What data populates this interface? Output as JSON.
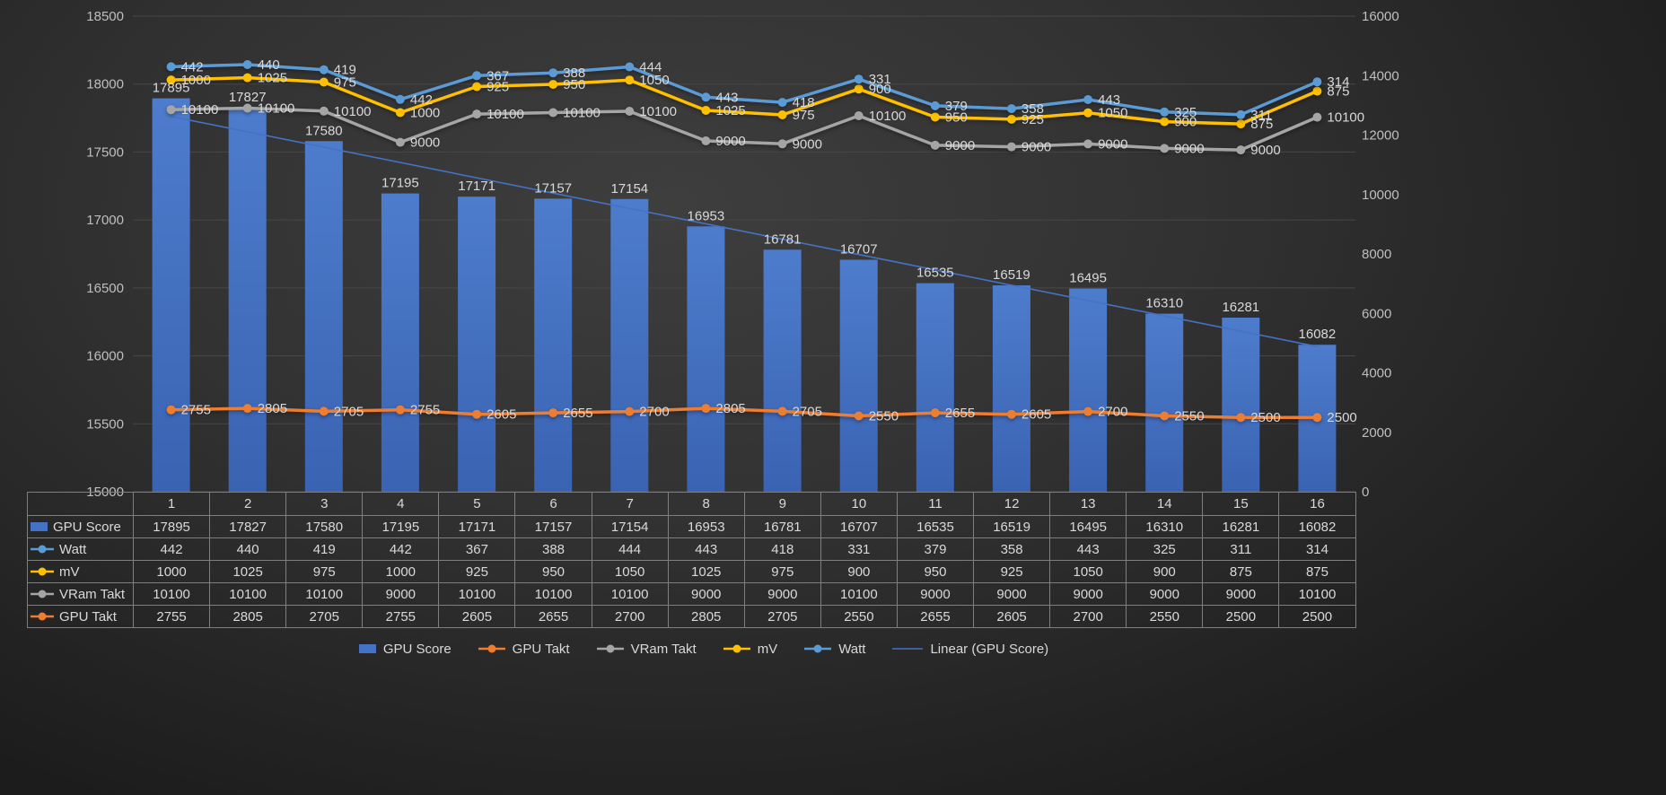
{
  "chart_data": {
    "type": "combo (bar + stacked lines + linear trendline)",
    "title": "",
    "categories": [
      "1",
      "2",
      "3",
      "4",
      "5",
      "6",
      "7",
      "8",
      "9",
      "10",
      "11",
      "12",
      "13",
      "14",
      "15",
      "16"
    ],
    "bar_series": {
      "name": "GPU Score",
      "axis": "left",
      "color": "#4472C4",
      "values": [
        17895,
        17827,
        17580,
        17195,
        17171,
        17157,
        17154,
        16953,
        16781,
        16707,
        16535,
        16519,
        16495,
        16310,
        16281,
        16082
      ]
    },
    "line_series": [
      {
        "name": "GPU Takt",
        "color": "#ED7D31",
        "values": [
          2755,
          2805,
          2705,
          2755,
          2605,
          2655,
          2700,
          2805,
          2705,
          2550,
          2655,
          2605,
          2700,
          2550,
          2500,
          2500
        ]
      },
      {
        "name": "VRam Takt",
        "color": "#A5A5A5",
        "values": [
          10100,
          10100,
          10100,
          9000,
          10100,
          10100,
          10100,
          9000,
          9000,
          10100,
          9000,
          9000,
          9000,
          9000,
          9000,
          10100
        ]
      },
      {
        "name": "mV",
        "color": "#FFC000",
        "values": [
          1000,
          1025,
          975,
          1000,
          925,
          950,
          1050,
          1025,
          975,
          900,
          950,
          925,
          1050,
          900,
          875,
          875
        ]
      },
      {
        "name": "Watt",
        "color": "#5B9BD5",
        "values": [
          442,
          440,
          419,
          442,
          367,
          388,
          444,
          443,
          418,
          331,
          379,
          358,
          443,
          325,
          311,
          314
        ]
      }
    ],
    "line_stacking": "stacked on right axis, bottom to top: GPU Takt, VRam Takt, mV, Watt",
    "trendline": {
      "name": "Linear (GPU Score)",
      "color": "#4472C4",
      "based_on": "GPU Score"
    },
    "left_axis": {
      "min": 15000,
      "max": 18500,
      "step": 500,
      "ticks": [
        "18500",
        "18000",
        "17500",
        "17000",
        "16500",
        "16000",
        "15500",
        "15000"
      ]
    },
    "right_axis": {
      "min": 0,
      "max": 16000,
      "step": 2000,
      "ticks": [
        "16000",
        "14000",
        "12000",
        "10000",
        "8000",
        "6000",
        "4000",
        "2000",
        "0"
      ]
    },
    "grid": true,
    "data_labels": true,
    "legend_position": "bottom"
  },
  "data_table": {
    "corner": "",
    "columns": [
      "1",
      "2",
      "3",
      "4",
      "5",
      "6",
      "7",
      "8",
      "9",
      "10",
      "11",
      "12",
      "13",
      "14",
      "15",
      "16"
    ],
    "rows": [
      {
        "label": "GPU Score",
        "icon": "bar",
        "color": "#4472C4",
        "values": [
          17895,
          17827,
          17580,
          17195,
          17171,
          17157,
          17154,
          16953,
          16781,
          16707,
          16535,
          16519,
          16495,
          16310,
          16281,
          16082
        ]
      },
      {
        "label": "Watt",
        "icon": "line-marker",
        "color": "#5B9BD5",
        "values": [
          442,
          440,
          419,
          442,
          367,
          388,
          444,
          443,
          418,
          331,
          379,
          358,
          443,
          325,
          311,
          314
        ]
      },
      {
        "label": "mV",
        "icon": "line-marker",
        "color": "#FFC000",
        "values": [
          1000,
          1025,
          975,
          1000,
          925,
          950,
          1050,
          1025,
          975,
          900,
          950,
          925,
          1050,
          900,
          875,
          875
        ]
      },
      {
        "label": "VRam Takt",
        "icon": "line-marker",
        "color": "#A5A5A5",
        "values": [
          10100,
          10100,
          10100,
          9000,
          10100,
          10100,
          10100,
          9000,
          9000,
          10100,
          9000,
          9000,
          9000,
          9000,
          9000,
          10100
        ]
      },
      {
        "label": "GPU Takt",
        "icon": "line-marker",
        "color": "#ED7D31",
        "values": [
          2755,
          2805,
          2705,
          2755,
          2605,
          2655,
          2700,
          2805,
          2705,
          2550,
          2655,
          2605,
          2700,
          2550,
          2500,
          2500
        ]
      }
    ]
  },
  "legend": {
    "items": [
      {
        "label": "GPU Score",
        "icon": "bar",
        "color": "#4472C4"
      },
      {
        "label": "GPU Takt",
        "icon": "line-marker",
        "color": "#ED7D31"
      },
      {
        "label": "VRam Takt",
        "icon": "line-marker",
        "color": "#A5A5A5"
      },
      {
        "label": "mV",
        "icon": "line-marker",
        "color": "#FFC000"
      },
      {
        "label": "Watt",
        "icon": "line-marker",
        "color": "#5B9BD5"
      },
      {
        "label": "Linear (GPU Score)",
        "icon": "trend-line",
        "color": "#4472C4"
      }
    ]
  },
  "colors": {
    "background": "#2e2e2e",
    "gridline": "#474747",
    "axis_text": "#bfbfbf",
    "label_text": "#d9d9d9",
    "table_border": "#7f7f7f"
  }
}
